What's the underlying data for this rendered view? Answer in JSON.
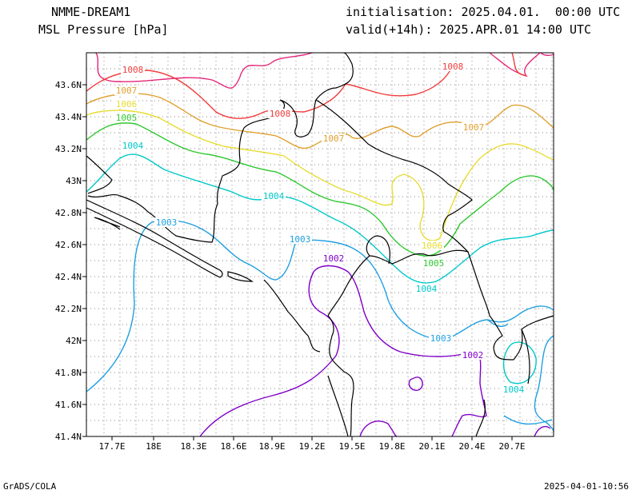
{
  "header": {
    "model": "NMME-DREAM1",
    "field": "MSL Pressure [hPa]",
    "init": "initialisation: 2025.04.01.  00:00 UTC",
    "valid": "valid(+14h): 2025.APR.01 14:00 UTC"
  },
  "footer": {
    "left": "GrADS/COLA",
    "right": "2025-04-01-10:56"
  },
  "axes": {
    "lon_ticks": [
      "17.7E",
      "18E",
      "18.3E",
      "18.6E",
      "18.9E",
      "19.2E",
      "19.5E",
      "19.8E",
      "20.1E",
      "20.4E",
      "20.7E"
    ],
    "lat_ticks": [
      "43.6N",
      "43.4N",
      "43.2N",
      "43N",
      "42.8N",
      "42.6N",
      "42.4N",
      "42.2N",
      "42N",
      "41.8N",
      "41.6N",
      "41.4N"
    ]
  },
  "colors": {
    "c1002": "#8000c8",
    "c1003": "#20a0e0",
    "c1004": "#00c8c8",
    "c1005": "#30c830",
    "c1006": "#e6dc32",
    "c1007": "#e0a030",
    "c1008": "#f03c3c",
    "c1009": "#e6287a",
    "coast": "#000000",
    "grid": "#888888"
  },
  "contour_labels": [
    {
      "text": "1008",
      "color": "c1008"
    },
    {
      "text": "1008",
      "color": "c1008"
    },
    {
      "text": "1008",
      "color": "c1008"
    },
    {
      "text": "1007",
      "color": "c1007"
    },
    {
      "text": "1007",
      "color": "c1007"
    },
    {
      "text": "1007",
      "color": "c1007"
    },
    {
      "text": "1006",
      "color": "c1006"
    },
    {
      "text": "1006",
      "color": "c1006"
    },
    {
      "text": "1005",
      "color": "c1005"
    },
    {
      "text": "1005",
      "color": "c1005"
    },
    {
      "text": "1004",
      "color": "c1004"
    },
    {
      "text": "1004",
      "color": "c1004"
    },
    {
      "text": "1004",
      "color": "c1004"
    },
    {
      "text": "1004",
      "color": "c1004"
    },
    {
      "text": "1003",
      "color": "c1003"
    },
    {
      "text": "1003",
      "color": "c1003"
    },
    {
      "text": "1003",
      "color": "c1003"
    },
    {
      "text": "1002",
      "color": "c1002"
    },
    {
      "text": "1002",
      "color": "c1002"
    }
  ]
}
